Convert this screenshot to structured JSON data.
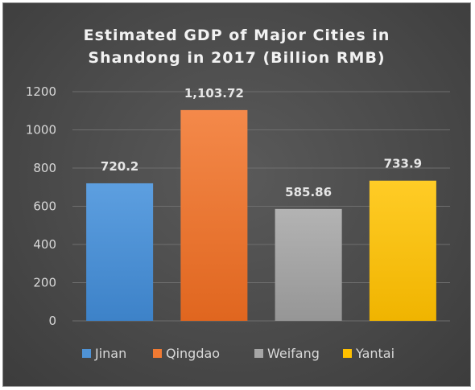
{
  "chart_data": {
    "type": "bar",
    "title_lines": [
      "Estimated GDP of Major Cities in",
      "Shandong in 2017 (Billion RMB)"
    ],
    "categories": [
      "Jinan",
      "Qingdao",
      "Weifang",
      "Yantai"
    ],
    "values": [
      720.2,
      1103.72,
      585.86,
      733.9
    ],
    "data_labels": [
      "720.2",
      "1,103.72",
      "585.86",
      "733.9"
    ],
    "colors": [
      "#4f93d6",
      "#f07a33",
      "#a6a6a6",
      "#ffc000"
    ],
    "yticks": [
      "0",
      "200",
      "400",
      "600",
      "800",
      "1000",
      "1200"
    ],
    "ylim": [
      0,
      1200
    ],
    "grid": true,
    "legend_position": "bottom"
  }
}
